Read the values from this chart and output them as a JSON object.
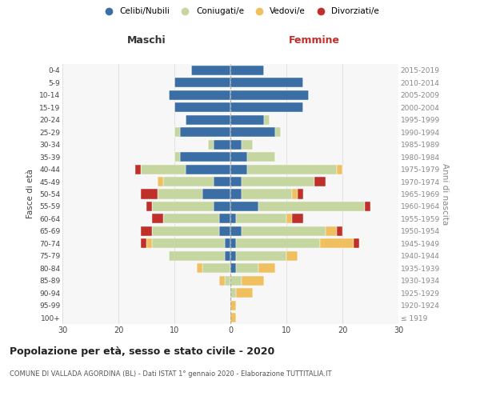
{
  "age_groups": [
    "100+",
    "95-99",
    "90-94",
    "85-89",
    "80-84",
    "75-79",
    "70-74",
    "65-69",
    "60-64",
    "55-59",
    "50-54",
    "45-49",
    "40-44",
    "35-39",
    "30-34",
    "25-29",
    "20-24",
    "15-19",
    "10-14",
    "5-9",
    "0-4"
  ],
  "birth_years": [
    "≤ 1919",
    "1920-1924",
    "1925-1929",
    "1930-1934",
    "1935-1939",
    "1940-1944",
    "1945-1949",
    "1950-1954",
    "1955-1959",
    "1960-1964",
    "1965-1969",
    "1970-1974",
    "1975-1979",
    "1980-1984",
    "1985-1989",
    "1990-1994",
    "1995-1999",
    "2000-2004",
    "2005-2009",
    "2010-2014",
    "2015-2019"
  ],
  "male": {
    "celibi": [
      0,
      0,
      0,
      0,
      0,
      1,
      1,
      2,
      2,
      3,
      5,
      3,
      8,
      9,
      3,
      9,
      8,
      10,
      11,
      10,
      7
    ],
    "coniugati": [
      0,
      0,
      0,
      1,
      5,
      10,
      13,
      12,
      10,
      11,
      8,
      9,
      8,
      1,
      1,
      1,
      0,
      0,
      0,
      0,
      0
    ],
    "vedovi": [
      0,
      0,
      0,
      1,
      1,
      0,
      1,
      0,
      0,
      0,
      0,
      1,
      0,
      0,
      0,
      0,
      0,
      0,
      0,
      0,
      0
    ],
    "divorziati": [
      0,
      0,
      0,
      0,
      0,
      0,
      1,
      2,
      2,
      1,
      3,
      0,
      1,
      0,
      0,
      0,
      0,
      0,
      0,
      0,
      0
    ]
  },
  "female": {
    "nubili": [
      0,
      0,
      0,
      0,
      1,
      1,
      1,
      2,
      1,
      5,
      2,
      2,
      3,
      3,
      2,
      8,
      6,
      13,
      14,
      13,
      6
    ],
    "coniugate": [
      0,
      0,
      1,
      2,
      4,
      9,
      15,
      15,
      9,
      19,
      9,
      13,
      16,
      5,
      2,
      1,
      1,
      0,
      0,
      0,
      0
    ],
    "vedove": [
      1,
      1,
      3,
      4,
      3,
      2,
      6,
      2,
      1,
      0,
      1,
      0,
      1,
      0,
      0,
      0,
      0,
      0,
      0,
      0,
      0
    ],
    "divorziate": [
      0,
      0,
      0,
      0,
      0,
      0,
      1,
      1,
      2,
      1,
      1,
      2,
      0,
      0,
      0,
      0,
      0,
      0,
      0,
      0,
      0
    ]
  },
  "colors": {
    "celibi": "#3a6ea5",
    "coniugati": "#c5d6a0",
    "vedovi": "#f0c060",
    "divorziati": "#c0302a"
  },
  "title": "Popolazione per età, sesso e stato civile - 2020",
  "subtitle": "COMUNE DI VALLADA AGORDINA (BL) - Dati ISTAT 1° gennaio 2020 - Elaborazione TUTTITALIA.IT",
  "xlabel_left": "Maschi",
  "xlabel_right": "Femmine",
  "ylabel_left": "Fasce di età",
  "ylabel_right": "Anni di nascita",
  "xlim": 30,
  "background_color": "#ffffff",
  "legend_labels": [
    "Celibi/Nubili",
    "Coniugati/e",
    "Vedovi/e",
    "Divorziati/e"
  ],
  "grid_color": "#dddddd",
  "bar_edge_color": "#ffffff",
  "center_line_color": "#aaaaaa"
}
